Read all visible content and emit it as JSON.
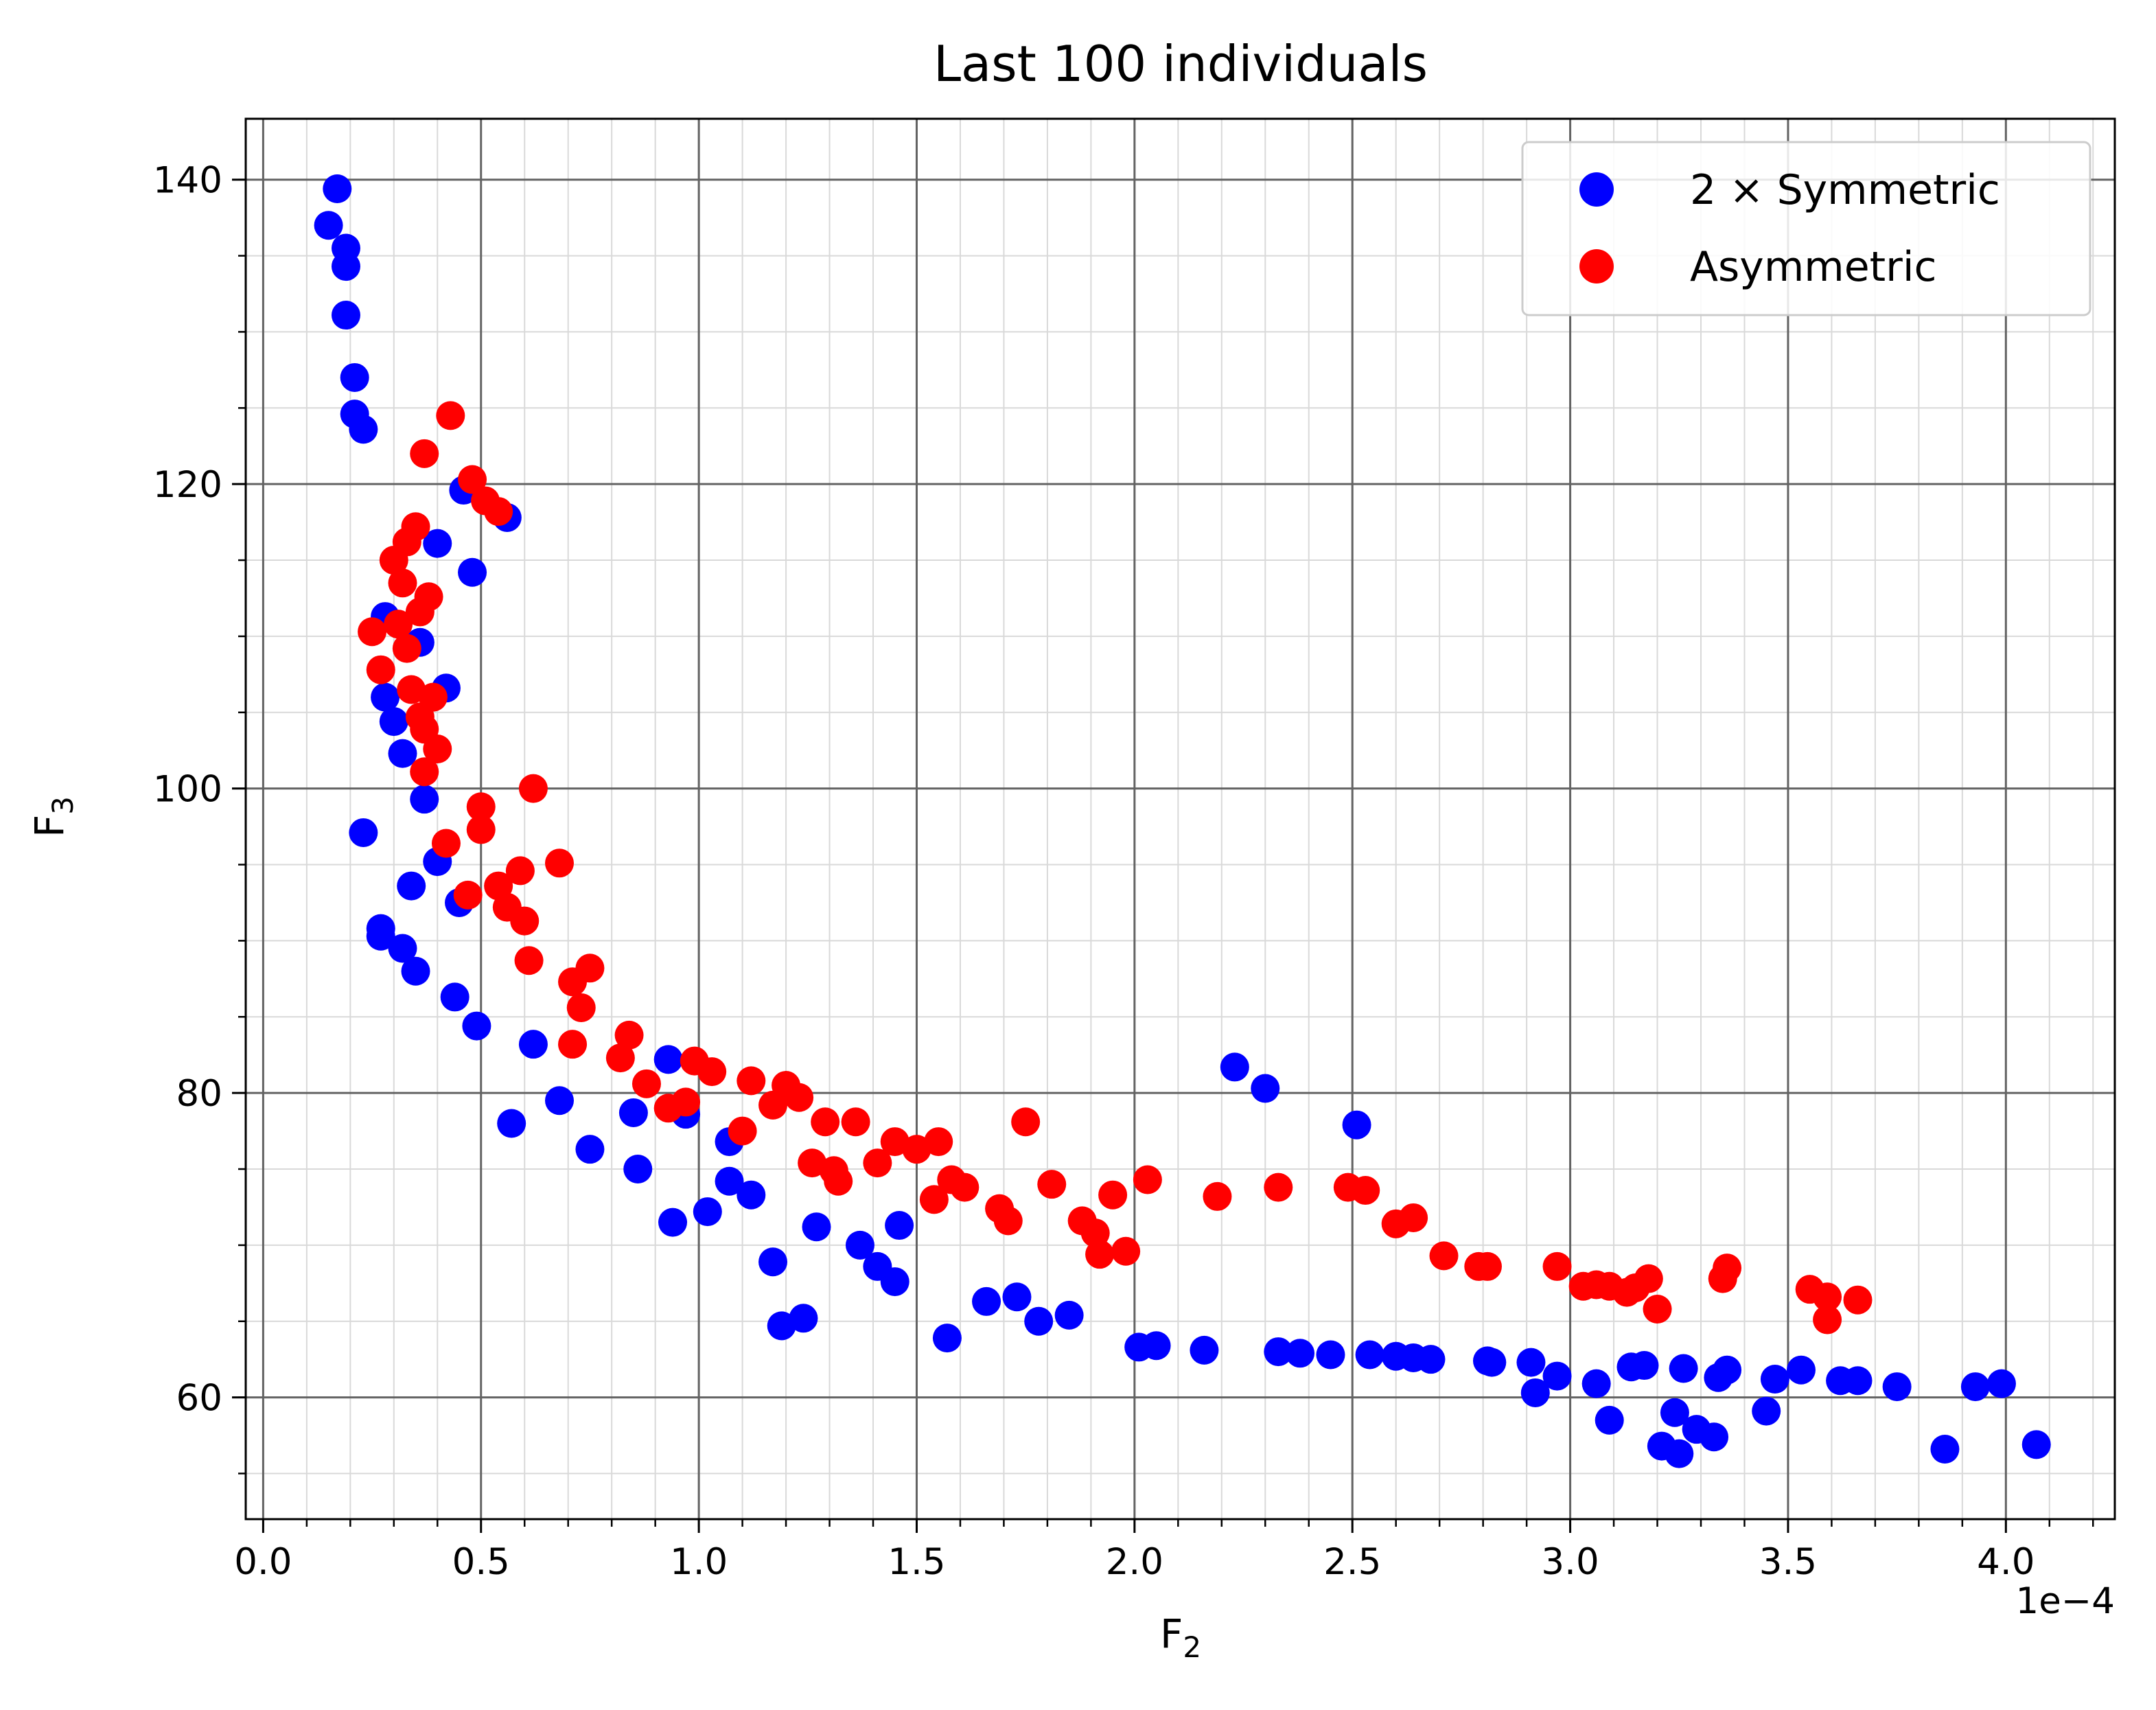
{
  "chart_data": {
    "type": "scatter",
    "title": "Last 100 individuals",
    "xlabel_base": "F",
    "xlabel_sub": "2",
    "ylabel_base": "F",
    "ylabel_sub": "3",
    "x_offset_text": "1e−4",
    "xlim": [
      -0.04,
      4.25
    ],
    "ylim": [
      52,
      144
    ],
    "x_ticks": [
      0.0,
      0.5,
      1.0,
      1.5,
      2.0,
      2.5,
      3.0,
      3.5,
      4.0
    ],
    "x_tick_labels": [
      "0.0",
      "0.5",
      "1.0",
      "1.5",
      "2.0",
      "2.5",
      "3.0",
      "3.5",
      "4.0"
    ],
    "y_ticks": [
      60,
      80,
      100,
      120,
      140
    ],
    "y_tick_labels": [
      "60",
      "80",
      "100",
      "120",
      "140"
    ],
    "x_minor_step": 0.1,
    "y_minor_step": 5,
    "grid": true,
    "legend_position": "top-right",
    "series": [
      {
        "name": "2 × Symmetric",
        "color": "#0000ff",
        "points": [
          [
            0.15,
            137.0
          ],
          [
            0.17,
            139.4
          ],
          [
            0.19,
            135.5
          ],
          [
            0.19,
            134.3
          ],
          [
            0.19,
            131.1
          ],
          [
            0.21,
            127.0
          ],
          [
            0.21,
            124.6
          ],
          [
            0.23,
            123.6
          ],
          [
            0.23,
            97.1
          ],
          [
            0.27,
            90.8
          ],
          [
            0.27,
            90.3
          ],
          [
            0.28,
            111.3
          ],
          [
            0.28,
            106.0
          ],
          [
            0.3,
            104.4
          ],
          [
            0.32,
            102.3
          ],
          [
            0.32,
            89.5
          ],
          [
            0.34,
            93.6
          ],
          [
            0.35,
            88.0
          ],
          [
            0.36,
            109.6
          ],
          [
            0.37,
            99.3
          ],
          [
            0.4,
            95.2
          ],
          [
            0.4,
            116.1
          ],
          [
            0.42,
            106.6
          ],
          [
            0.44,
            86.3
          ],
          [
            0.45,
            92.5
          ],
          [
            0.46,
            119.6
          ],
          [
            0.48,
            114.2
          ],
          [
            0.49,
            84.4
          ],
          [
            0.56,
            117.8
          ],
          [
            0.57,
            78.0
          ],
          [
            0.62,
            83.2
          ],
          [
            0.68,
            79.5
          ],
          [
            0.75,
            76.3
          ],
          [
            0.85,
            78.7
          ],
          [
            0.86,
            75.0
          ],
          [
            0.93,
            82.2
          ],
          [
            0.94,
            71.5
          ],
          [
            0.97,
            78.6
          ],
          [
            1.02,
            72.2
          ],
          [
            1.07,
            76.8
          ],
          [
            1.07,
            74.2
          ],
          [
            1.12,
            73.3
          ],
          [
            1.17,
            68.9
          ],
          [
            1.19,
            64.7
          ],
          [
            1.24,
            65.2
          ],
          [
            1.27,
            71.2
          ],
          [
            1.37,
            70.0
          ],
          [
            1.41,
            68.6
          ],
          [
            1.45,
            67.6
          ],
          [
            1.46,
            71.3
          ],
          [
            1.57,
            63.9
          ],
          [
            1.66,
            66.3
          ],
          [
            1.73,
            66.6
          ],
          [
            1.78,
            65.0
          ],
          [
            1.85,
            65.4
          ],
          [
            2.01,
            63.3
          ],
          [
            2.05,
            63.4
          ],
          [
            2.16,
            63.1
          ],
          [
            2.23,
            81.7
          ],
          [
            2.3,
            80.3
          ],
          [
            2.33,
            63.0
          ],
          [
            2.38,
            62.9
          ],
          [
            2.45,
            62.8
          ],
          [
            2.51,
            77.9
          ],
          [
            2.54,
            62.8
          ],
          [
            2.6,
            62.7
          ],
          [
            2.64,
            62.6
          ],
          [
            2.68,
            62.5
          ],
          [
            2.81,
            62.4
          ],
          [
            2.82,
            62.3
          ],
          [
            2.91,
            62.3
          ],
          [
            2.92,
            60.3
          ],
          [
            2.97,
            61.4
          ],
          [
            3.06,
            60.9
          ],
          [
            3.09,
            58.5
          ],
          [
            3.14,
            62.0
          ],
          [
            3.17,
            62.1
          ],
          [
            3.21,
            56.8
          ],
          [
            3.24,
            59.0
          ],
          [
            3.25,
            56.3
          ],
          [
            3.26,
            61.9
          ],
          [
            3.29,
            57.9
          ],
          [
            3.33,
            57.4
          ],
          [
            3.34,
            61.3
          ],
          [
            3.36,
            61.8
          ],
          [
            3.45,
            59.1
          ],
          [
            3.47,
            61.2
          ],
          [
            3.53,
            61.8
          ],
          [
            3.62,
            61.1
          ],
          [
            3.66,
            61.1
          ],
          [
            3.75,
            60.7
          ],
          [
            3.86,
            56.6
          ],
          [
            3.93,
            60.7
          ],
          [
            3.99,
            60.9
          ],
          [
            4.07,
            56.9
          ]
        ]
      },
      {
        "name": "Asymmetric",
        "color": "#ff0000",
        "points": [
          [
            0.25,
            110.3
          ],
          [
            0.27,
            107.8
          ],
          [
            0.3,
            115.0
          ],
          [
            0.31,
            110.8
          ],
          [
            0.32,
            113.5
          ],
          [
            0.33,
            116.2
          ],
          [
            0.33,
            109.2
          ],
          [
            0.34,
            106.5
          ],
          [
            0.35,
            117.2
          ],
          [
            0.36,
            104.7
          ],
          [
            0.36,
            111.6
          ],
          [
            0.37,
            101.1
          ],
          [
            0.37,
            103.9
          ],
          [
            0.37,
            122.0
          ],
          [
            0.38,
            112.6
          ],
          [
            0.39,
            106.0
          ],
          [
            0.4,
            102.6
          ],
          [
            0.42,
            96.4
          ],
          [
            0.43,
            124.5
          ],
          [
            0.47,
            93.0
          ],
          [
            0.48,
            120.3
          ],
          [
            0.5,
            98.8
          ],
          [
            0.5,
            97.3
          ],
          [
            0.51,
            118.9
          ],
          [
            0.54,
            118.2
          ],
          [
            0.54,
            93.6
          ],
          [
            0.56,
            92.2
          ],
          [
            0.59,
            94.6
          ],
          [
            0.6,
            91.3
          ],
          [
            0.61,
            88.7
          ],
          [
            0.62,
            100.0
          ],
          [
            0.68,
            95.1
          ],
          [
            0.71,
            87.3
          ],
          [
            0.71,
            83.2
          ],
          [
            0.73,
            85.6
          ],
          [
            0.75,
            88.2
          ],
          [
            0.82,
            82.3
          ],
          [
            0.84,
            83.8
          ],
          [
            0.88,
            80.6
          ],
          [
            0.93,
            79.0
          ],
          [
            0.97,
            79.4
          ],
          [
            0.99,
            82.1
          ],
          [
            1.03,
            81.4
          ],
          [
            1.1,
            77.5
          ],
          [
            1.12,
            80.8
          ],
          [
            1.17,
            79.2
          ],
          [
            1.2,
            80.5
          ],
          [
            1.23,
            79.7
          ],
          [
            1.26,
            75.4
          ],
          [
            1.29,
            78.1
          ],
          [
            1.31,
            74.9
          ],
          [
            1.32,
            74.2
          ],
          [
            1.36,
            78.1
          ],
          [
            1.41,
            75.4
          ],
          [
            1.45,
            76.8
          ],
          [
            1.5,
            76.3
          ],
          [
            1.54,
            73.0
          ],
          [
            1.55,
            76.8
          ],
          [
            1.58,
            74.3
          ],
          [
            1.61,
            73.8
          ],
          [
            1.69,
            72.4
          ],
          [
            1.71,
            71.6
          ],
          [
            1.75,
            78.1
          ],
          [
            1.81,
            74.0
          ],
          [
            1.88,
            71.6
          ],
          [
            1.91,
            70.8
          ],
          [
            1.92,
            69.4
          ],
          [
            1.95,
            73.3
          ],
          [
            1.98,
            69.6
          ],
          [
            2.03,
            74.3
          ],
          [
            2.19,
            73.2
          ],
          [
            2.33,
            73.8
          ],
          [
            2.49,
            73.8
          ],
          [
            2.53,
            73.6
          ],
          [
            2.6,
            71.4
          ],
          [
            2.64,
            71.8
          ],
          [
            2.71,
            69.3
          ],
          [
            2.79,
            68.6
          ],
          [
            2.81,
            68.6
          ],
          [
            2.97,
            68.6
          ],
          [
            3.03,
            67.3
          ],
          [
            3.06,
            67.4
          ],
          [
            3.09,
            67.3
          ],
          [
            3.13,
            66.9
          ],
          [
            3.15,
            67.2
          ],
          [
            3.18,
            67.8
          ],
          [
            3.2,
            65.8
          ],
          [
            3.35,
            67.8
          ],
          [
            3.36,
            68.5
          ],
          [
            3.55,
            67.1
          ],
          [
            3.59,
            66.6
          ],
          [
            3.59,
            65.1
          ],
          [
            3.66,
            66.4
          ]
        ]
      }
    ]
  }
}
